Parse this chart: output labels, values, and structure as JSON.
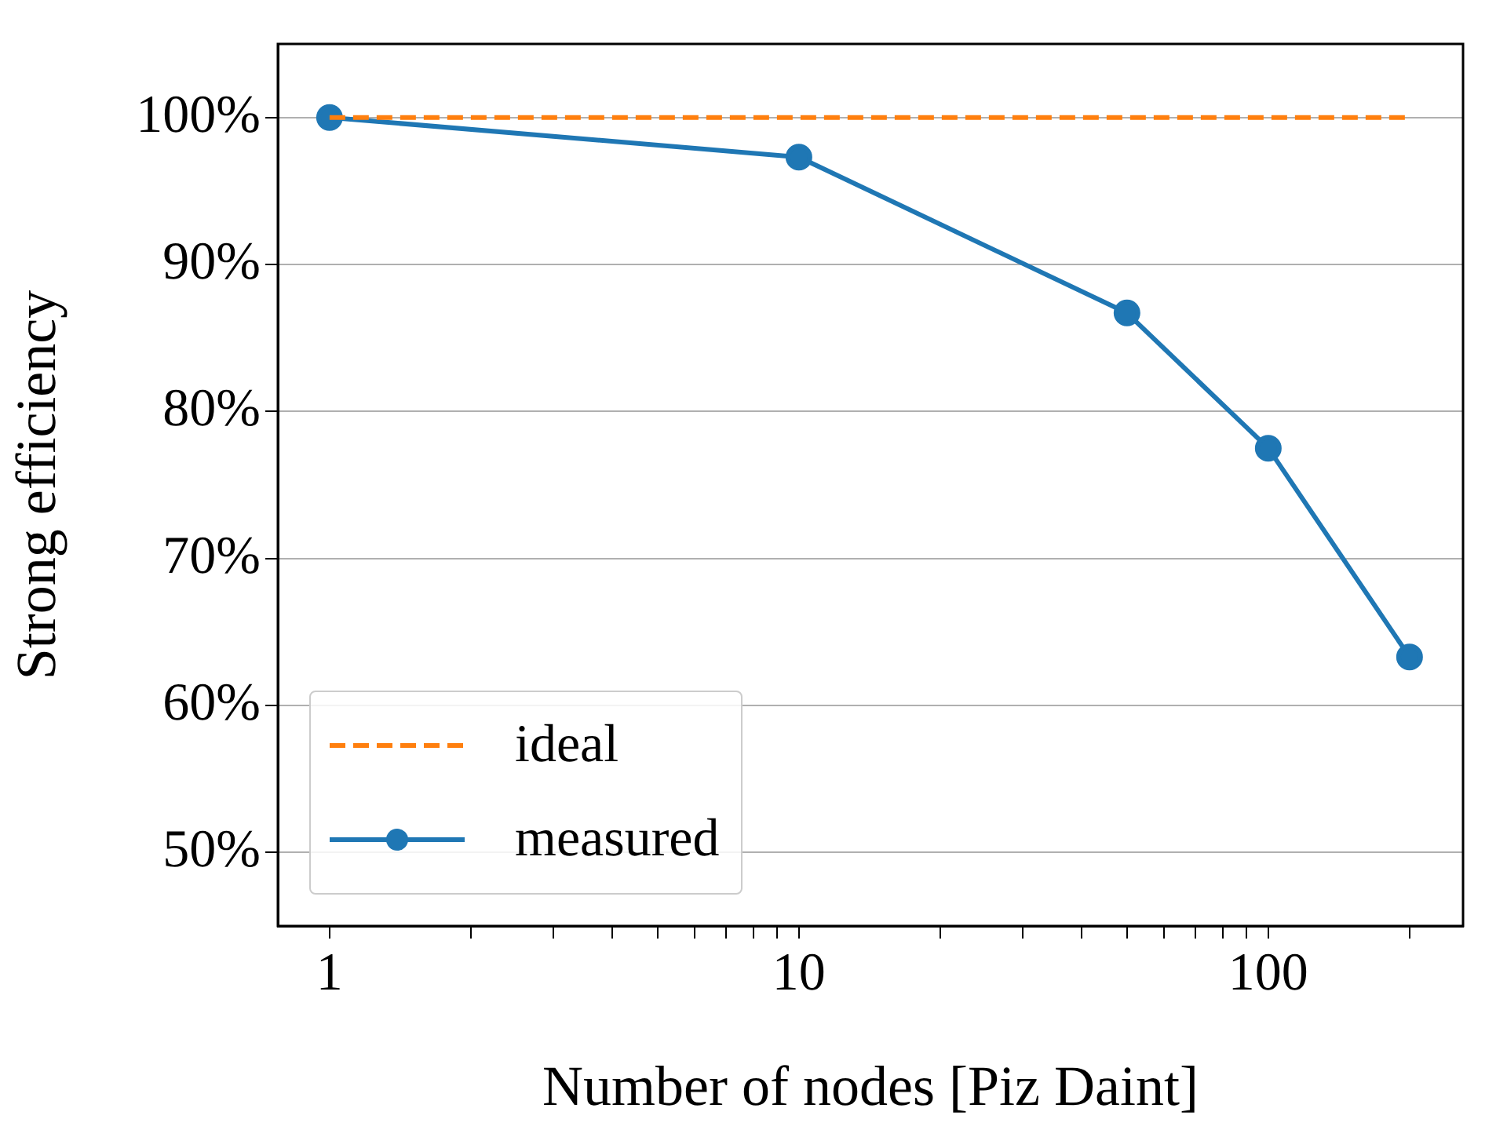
{
  "chart_data": {
    "type": "line",
    "xlabel": "Number of nodes [Piz Daint]",
    "ylabel": "Strong efficiency",
    "log": "x",
    "grid": "y",
    "legend": "bottom left",
    "xlim": [
      0.776,
      260
    ],
    "ylim": [
      45,
      105
    ],
    "xticks": [
      1,
      {
        "value": 2,
        "label": null
      },
      {
        "value": 3,
        "label": null
      },
      {
        "value": 4,
        "label": null
      },
      {
        "value": 5,
        "label": null
      },
      {
        "value": 6,
        "label": null
      },
      {
        "value": 7,
        "label": null
      },
      {
        "value": 8,
        "label": null
      },
      {
        "value": 9,
        "label": null
      },
      10,
      {
        "value": 20,
        "label": null
      },
      {
        "value": 30,
        "label": null
      },
      {
        "value": 40,
        "label": null
      },
      {
        "value": 50,
        "label": null
      },
      {
        "value": 60,
        "label": null
      },
      {
        "value": 70,
        "label": null
      },
      {
        "value": 80,
        "label": null
      },
      {
        "value": 90,
        "label": null
      },
      100,
      {
        "value": 200,
        "label": null
      }
    ],
    "yticks": [
      {
        "value": 50,
        "label": "50%"
      },
      {
        "value": 60,
        "label": "60%"
      },
      {
        "value": 70,
        "label": "70%"
      },
      {
        "value": 80,
        "label": "80%"
      },
      {
        "value": 90,
        "label": "90%"
      },
      {
        "value": 100,
        "label": "100%"
      }
    ],
    "series": [
      {
        "name": "ideal",
        "color": "#ff7f0e",
        "line_style": "dashed",
        "marker": "none",
        "x": [
          1,
          10,
          50,
          100,
          200
        ],
        "values": [
          100,
          100,
          100,
          100,
          100
        ]
      },
      {
        "name": "measured",
        "color": "#1f77b4",
        "line_style": "solid",
        "marker": "circle",
        "x": [
          1,
          10,
          50,
          100,
          200
        ],
        "values": [
          100,
          97.3,
          86.7,
          77.5,
          63.3
        ]
      }
    ]
  }
}
